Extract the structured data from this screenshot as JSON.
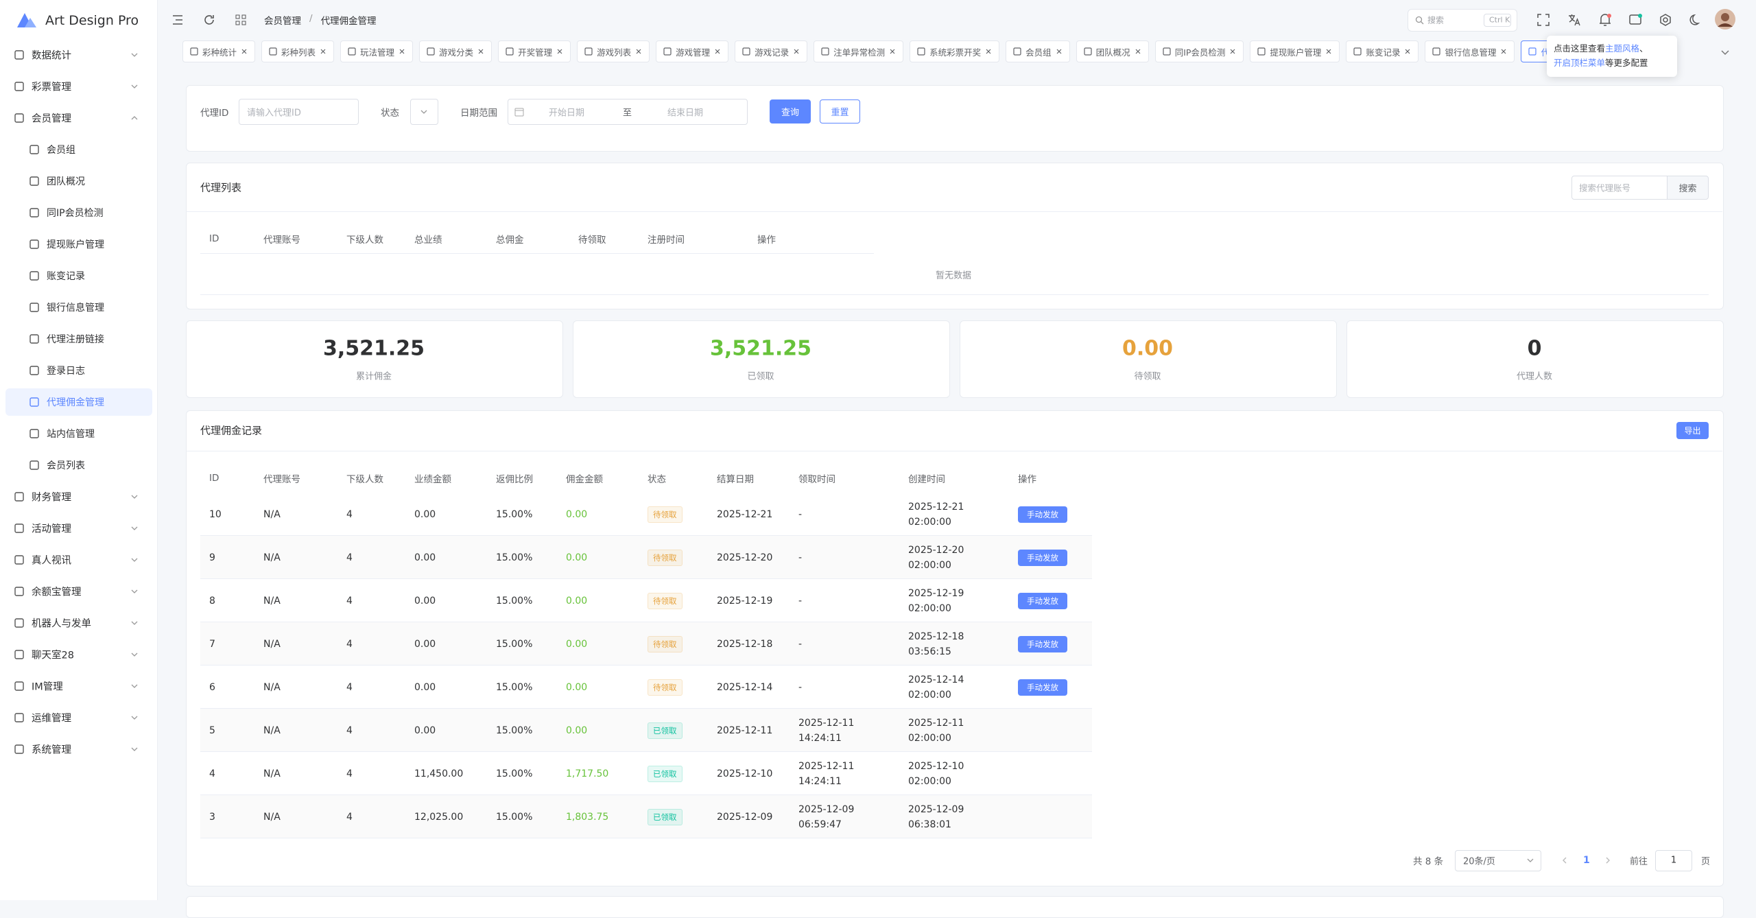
{
  "sidebar": {
    "brand": "Art Design Pro",
    "menu": [
      {
        "label": "数据统计"
      },
      {
        "label": "彩票管理"
      },
      {
        "label": "会员管理",
        "children": [
          {
            "label": "会员组"
          },
          {
            "label": "团队概况"
          },
          {
            "label": "同IP会员检测"
          },
          {
            "label": "提现账户管理"
          },
          {
            "label": "账变记录"
          },
          {
            "label": "银行信息管理"
          },
          {
            "label": "代理注册链接"
          },
          {
            "label": "登录日志"
          },
          {
            "label": "代理佣金管理",
            "active": true
          },
          {
            "label": "站内信管理"
          },
          {
            "label": "会员列表"
          }
        ]
      },
      {
        "label": "财务管理"
      },
      {
        "label": "活动管理"
      },
      {
        "label": "真人视讯"
      },
      {
        "label": "余额宝管理"
      },
      {
        "label": "机器人与发单"
      },
      {
        "label": "聊天室28"
      },
      {
        "label": "IM管理"
      },
      {
        "label": "运维管理"
      },
      {
        "label": "系统管理"
      }
    ]
  },
  "header": {
    "breadcrumb": [
      "会员管理",
      "代理佣金管理"
    ],
    "separator": "/",
    "search": {
      "placeholder": "搜索",
      "shortcut": "Ctrl K"
    }
  },
  "tabs": [
    {
      "label": "彩种统计"
    },
    {
      "label": "彩种列表"
    },
    {
      "label": "玩法管理"
    },
    {
      "label": "游戏分类"
    },
    {
      "label": "开奖管理"
    },
    {
      "label": "游戏列表"
    },
    {
      "label": "游戏管理"
    },
    {
      "label": "游戏记录"
    },
    {
      "label": "注单异常检测"
    },
    {
      "label": "系统彩票开奖"
    },
    {
      "label": "会员组"
    },
    {
      "label": "团队概况"
    },
    {
      "label": "同IP会员检测"
    },
    {
      "label": "提现账户管理"
    },
    {
      "label": "账变记录"
    },
    {
      "label": "银行信息管理"
    },
    {
      "label": "代理佣金管理",
      "active": true
    }
  ],
  "tooltip": {
    "parts": [
      {
        "text": "点击这里查看"
      },
      {
        "text": "主题风格",
        "link": true
      },
      {
        "text": "、"
      },
      {
        "text": "开启顶栏菜单",
        "link": true
      },
      {
        "text": "等更多配置"
      }
    ]
  },
  "filter": {
    "agent_id": {
      "label": "代理ID",
      "placeholder": "请输入代理ID"
    },
    "status": {
      "label": "状态"
    },
    "date": {
      "label": "日期范围",
      "start": "开始日期",
      "to": "至",
      "end": "结束日期"
    },
    "query": "查询",
    "reset": "重置"
  },
  "agent_list": {
    "title": "代理列表",
    "search_placeholder": "搜索代理账号",
    "search_button": "搜索",
    "columns": [
      "ID",
      "代理账号",
      "下级人数",
      "总业绩",
      "总佣金",
      "待领取",
      "注册时间",
      "操作"
    ],
    "empty": "暂无数据"
  },
  "stats": [
    {
      "value": "3,521.25",
      "label": "累计佣金",
      "color": "#303133"
    },
    {
      "value": "3,521.25",
      "label": "已领取",
      "color": "#67c23a"
    },
    {
      "value": "0.00",
      "label": "待领取",
      "color": "#e6a23c"
    },
    {
      "value": "0",
      "label": "代理人数",
      "color": "#303133"
    }
  ],
  "records": {
    "title": "代理佣金记录",
    "export": "导出",
    "amount_color": "#67c23a",
    "status_colors": {
      "待领取": "#e6a23c",
      "已领取": "#13c2a0"
    },
    "columns": [
      "ID",
      "代理账号",
      "下级人数",
      "业绩金额",
      "返佣比例",
      "佣金金额",
      "状态",
      "结算日期",
      "领取时间",
      "创建时间",
      "操作"
    ],
    "rows": [
      {
        "cells": [
          "10",
          "N/A",
          "4",
          "0.00",
          "15.00%",
          "0.00",
          "待领取",
          "2025-12-21",
          "-",
          "2025-12-21 02:00:00"
        ],
        "action": "手动发放"
      },
      {
        "cells": [
          "9",
          "N/A",
          "4",
          "0.00",
          "15.00%",
          "0.00",
          "待领取",
          "2025-12-20",
          "-",
          "2025-12-20 02:00:00"
        ],
        "action": "手动发放"
      },
      {
        "cells": [
          "8",
          "N/A",
          "4",
          "0.00",
          "15.00%",
          "0.00",
          "待领取",
          "2025-12-19",
          "-",
          "2025-12-19 02:00:00"
        ],
        "action": "手动发放"
      },
      {
        "cells": [
          "7",
          "N/A",
          "4",
          "0.00",
          "15.00%",
          "0.00",
          "待领取",
          "2025-12-18",
          "-",
          "2025-12-18 03:56:15"
        ],
        "action": "手动发放"
      },
      {
        "cells": [
          "6",
          "N/A",
          "4",
          "0.00",
          "15.00%",
          "0.00",
          "待领取",
          "2025-12-14",
          "-",
          "2025-12-14 02:00:00"
        ],
        "action": "手动发放"
      },
      {
        "cells": [
          "5",
          "N/A",
          "4",
          "0.00",
          "15.00%",
          "0.00",
          "已领取",
          "2025-12-11",
          "2025-12-11 14:24:11",
          "2025-12-11 02:00:00"
        ]
      },
      {
        "cells": [
          "4",
          "N/A",
          "4",
          "11,450.00",
          "15.00%",
          "1,717.50",
          "已领取",
          "2025-12-10",
          "2025-12-11 14:24:11",
          "2025-12-10 02:00:00"
        ]
      },
      {
        "cells": [
          "3",
          "N/A",
          "4",
          "12,025.00",
          "15.00%",
          "1,803.75",
          "已领取",
          "2025-12-09",
          "2025-12-09 06:59:47",
          "2025-12-09 06:38:01"
        ]
      }
    ]
  },
  "pagination": {
    "total": "共 8 条",
    "page_size": "20条/页",
    "current": "1",
    "goto": "前往",
    "goto_value": "1",
    "page_unit": "页"
  }
}
